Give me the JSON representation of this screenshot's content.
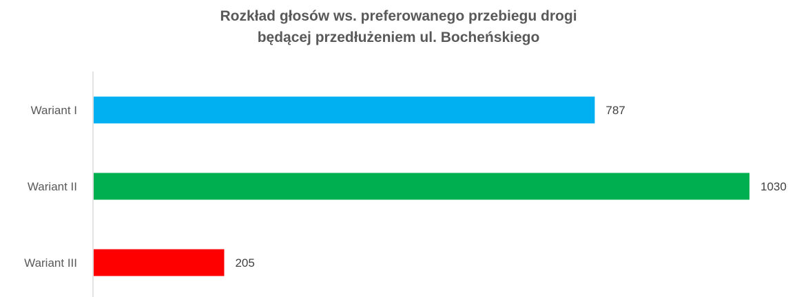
{
  "chart_data": {
    "type": "bar",
    "orientation": "horizontal",
    "title_lines": [
      "Rozkład głosów ws. preferowanego przebiegu drogi",
      "będącej przedłużeniem ul. Bocheńskiego"
    ],
    "categories": [
      "Wariant I",
      "Wariant II",
      "Wariant III"
    ],
    "values": [
      787,
      1030,
      205
    ],
    "value_labels": [
      "787",
      "1030",
      "205"
    ],
    "colors": [
      "#00B0F0",
      "#00B050",
      "#FF0000"
    ],
    "xlim": [
      0,
      1030
    ],
    "xlabel": "",
    "ylabel": "",
    "grid": false,
    "legend": false
  }
}
